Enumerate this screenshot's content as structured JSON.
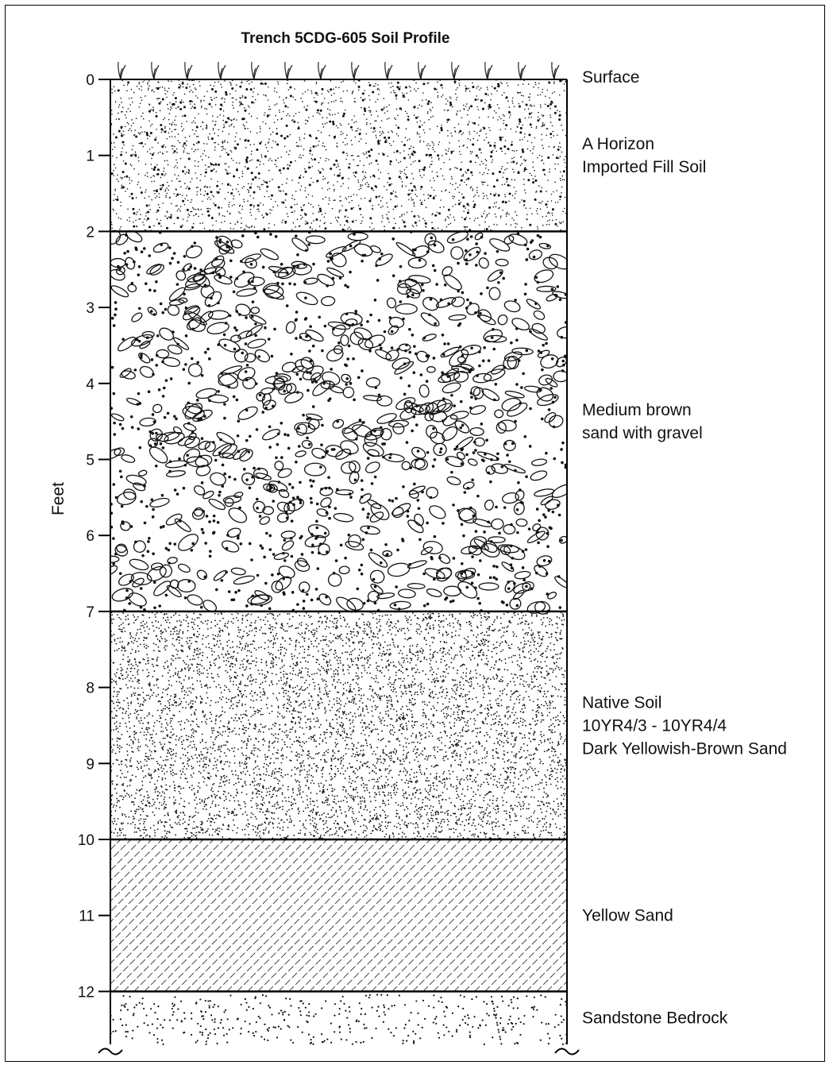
{
  "title": "Trench 5CDG-605 Soil Profile",
  "axis": {
    "label": "Feet",
    "ticks": [
      "0",
      "1",
      "2",
      "3",
      "4",
      "5",
      "6",
      "7",
      "8",
      "9",
      "10",
      "11",
      "12"
    ]
  },
  "surface_label": "Surface",
  "layers": [
    {
      "top": 0,
      "bottom": 2,
      "pattern": "fine-dots",
      "lines": [
        "A Horizon",
        "Imported Fill Soil"
      ]
    },
    {
      "top": 2,
      "bottom": 7,
      "pattern": "gravel",
      "lines": [
        "Medium brown",
        "sand with gravel"
      ]
    },
    {
      "top": 7,
      "bottom": 10,
      "pattern": "dense-dots",
      "lines": [
        "Native Soil",
        "10YR4/3 - 10YR4/4",
        "Dark Yellowish-Brown Sand"
      ]
    },
    {
      "top": 10,
      "bottom": 12,
      "pattern": "diagonal",
      "lines": [
        "Yellow Sand"
      ]
    },
    {
      "top": 12,
      "bottom": 12.8,
      "pattern": "sparse-dots",
      "lines": [
        "Sandstone Bedrock"
      ]
    }
  ]
}
